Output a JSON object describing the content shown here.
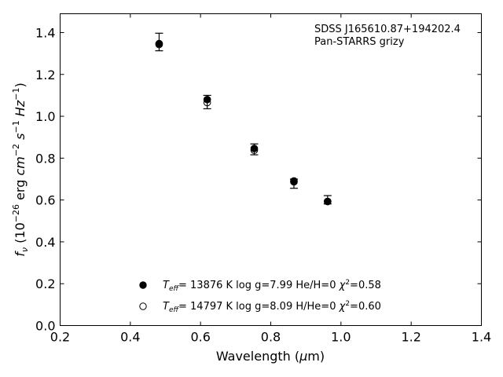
{
  "chart_data": {
    "type": "scatter",
    "xlabel": "Wavelength (μm)",
    "ylabel": "f_ν (10^-26 erg cm^-2 s^-1 Hz^-1)",
    "xlim": [
      0.2,
      1.4
    ],
    "ylim": [
      0.0,
      1.49
    ],
    "x_ticks": [
      0.2,
      0.4,
      0.6,
      0.8,
      1.0,
      1.2,
      1.4
    ],
    "x_tick_labels": [
      "0.2",
      "0.4",
      "0.6",
      "0.8",
      "1.0",
      "1.2",
      "1.4"
    ],
    "y_ticks": [
      0.0,
      0.2,
      0.4,
      0.6,
      0.8,
      1.0,
      1.2,
      1.4
    ],
    "y_tick_labels": [
      "0.0",
      "0.2",
      "0.4",
      "0.6",
      "0.8",
      "1.0",
      "1.2",
      "1.4"
    ],
    "grid": false,
    "legend_placement": "lower-center",
    "annotation_lines": [
      "SDSS J165610.87+194202.4",
      "Pan-STARRS grizy"
    ],
    "observed": {
      "x": [
        0.482,
        0.619,
        0.753,
        0.866,
        0.962
      ],
      "y": [
        1.355,
        1.068,
        0.842,
        0.678,
        0.601
      ],
      "err": [
        0.042,
        0.032,
        0.026,
        0.022,
        0.02
      ]
    },
    "series": [
      {
        "marker": "filled-circle",
        "legend": {
          "teff": "13876",
          "logg": "7.99",
          "comp": "He/H=0",
          "chi2": "0.58"
        },
        "x": [
          0.482,
          0.619,
          0.753,
          0.866,
          0.962
        ],
        "y": [
          1.347,
          1.08,
          0.846,
          0.691,
          0.593
        ]
      },
      {
        "marker": "open-circle",
        "legend": {
          "teff": "14797",
          "logg": "8.09",
          "comp": "H/He=0",
          "chi2": "0.60"
        },
        "x": [
          0.482,
          0.619,
          0.753,
          0.866,
          0.962
        ],
        "y": [
          1.343,
          1.066,
          0.838,
          0.687,
          0.593
        ]
      }
    ]
  }
}
